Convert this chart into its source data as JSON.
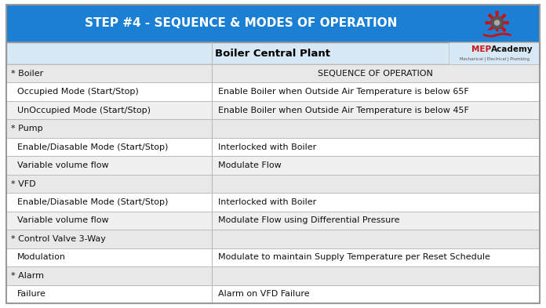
{
  "title": "STEP #4 - SEQUENCE & MODES OF OPERATION",
  "title_bg": "#1B7FD4",
  "title_color": "#FFFFFF",
  "subheader_text": "Boiler Central Plant",
  "subheader_bg": "#D8E8F4",
  "subheader_color": "#000000",
  "col_split": 0.385,
  "rows": [
    {
      "left": "* Boiler",
      "right": "SEQUENCE OF OPERATION",
      "left_bold": false,
      "right_bold": false,
      "bg": "#E8E8E8",
      "left_indent": false
    },
    {
      "left": "Occupied Mode (Start/Stop)",
      "right": "Enable Boiler when Outside Air Temperature is below 65F",
      "left_bold": false,
      "right_bold": false,
      "bg": "#FFFFFF",
      "left_indent": true
    },
    {
      "left": "UnOccupied Mode (Start/Stop)",
      "right": "Enable Boiler when Outside Air Temperature is below 45F",
      "left_bold": false,
      "right_bold": false,
      "bg": "#F0F0F0",
      "left_indent": true
    },
    {
      "left": "* Pump",
      "right": "",
      "left_bold": false,
      "right_bold": false,
      "bg": "#E8E8E8",
      "left_indent": false
    },
    {
      "left": "Enable/Diasable Mode (Start/Stop)",
      "right": "Interlocked with Boiler",
      "left_bold": false,
      "right_bold": false,
      "bg": "#FFFFFF",
      "left_indent": true
    },
    {
      "left": "Variable volume flow",
      "right": "Modulate Flow",
      "left_bold": false,
      "right_bold": false,
      "bg": "#F0F0F0",
      "left_indent": true
    },
    {
      "left": "* VFD",
      "right": "",
      "left_bold": false,
      "right_bold": false,
      "bg": "#E8E8E8",
      "left_indent": false
    },
    {
      "left": "Enable/Diasable Mode (Start/Stop)",
      "right": "Interlocked with Boiler",
      "left_bold": false,
      "right_bold": false,
      "bg": "#FFFFFF",
      "left_indent": true
    },
    {
      "left": "Variable volume flow",
      "right": "Modulate Flow using Differential Pressure",
      "left_bold": false,
      "right_bold": false,
      "bg": "#F0F0F0",
      "left_indent": true
    },
    {
      "left": "* Control Valve 3-Way",
      "right": "",
      "left_bold": false,
      "right_bold": false,
      "bg": "#E8E8E8",
      "left_indent": false
    },
    {
      "left": "Modulation",
      "right": "Modulate to maintain Supply Temperature per Reset Schedule",
      "left_bold": false,
      "right_bold": false,
      "bg": "#FFFFFF",
      "left_indent": true
    },
    {
      "left": "* Alarm",
      "right": "",
      "left_bold": false,
      "right_bold": false,
      "bg": "#E8E8E8",
      "left_indent": false
    },
    {
      "left": "Failure",
      "right": "Alarm on VFD Failure",
      "left_bold": false,
      "right_bold": false,
      "bg": "#FFFFFF",
      "left_indent": true
    }
  ],
  "border_color": "#BBBBBB",
  "outer_border_color": "#999999",
  "font_size": 8,
  "title_font_size": 11,
  "mep_red": "#CC1111",
  "mep_blue": "#1B7FD4",
  "mep_gray": "#888888"
}
